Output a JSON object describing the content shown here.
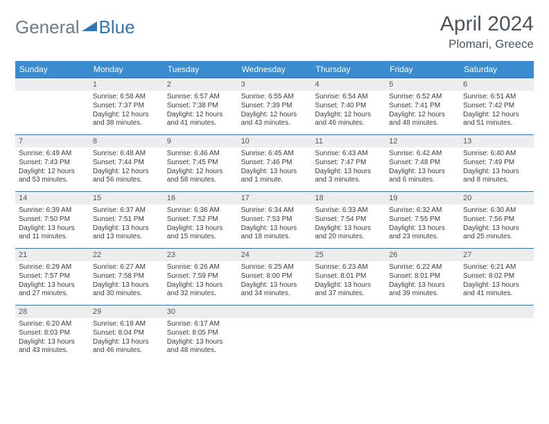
{
  "brand": {
    "part1": "General",
    "part2": "Blue"
  },
  "title": "April 2024",
  "location": "Plomari, Greece",
  "colors": {
    "header_bg": "#3a8bd0",
    "header_fg": "#ffffff",
    "rule": "#3a6fa3",
    "daynum_bg": "#ecedef",
    "brand_gray": "#6b7b8a",
    "brand_blue": "#2f77b8",
    "title_color": "#4a5560"
  },
  "weekdays": [
    "Sunday",
    "Monday",
    "Tuesday",
    "Wednesday",
    "Thursday",
    "Friday",
    "Saturday"
  ],
  "start_offset": 1,
  "days": [
    {
      "n": 1,
      "sr": "6:58 AM",
      "ss": "7:37 PM",
      "dl": "12 hours and 38 minutes."
    },
    {
      "n": 2,
      "sr": "6:57 AM",
      "ss": "7:38 PM",
      "dl": "12 hours and 41 minutes."
    },
    {
      "n": 3,
      "sr": "6:55 AM",
      "ss": "7:39 PM",
      "dl": "12 hours and 43 minutes."
    },
    {
      "n": 4,
      "sr": "6:54 AM",
      "ss": "7:40 PM",
      "dl": "12 hours and 46 minutes."
    },
    {
      "n": 5,
      "sr": "6:52 AM",
      "ss": "7:41 PM",
      "dl": "12 hours and 48 minutes."
    },
    {
      "n": 6,
      "sr": "6:51 AM",
      "ss": "7:42 PM",
      "dl": "12 hours and 51 minutes."
    },
    {
      "n": 7,
      "sr": "6:49 AM",
      "ss": "7:43 PM",
      "dl": "12 hours and 53 minutes."
    },
    {
      "n": 8,
      "sr": "6:48 AM",
      "ss": "7:44 PM",
      "dl": "12 hours and 56 minutes."
    },
    {
      "n": 9,
      "sr": "6:46 AM",
      "ss": "7:45 PM",
      "dl": "12 hours and 58 minutes."
    },
    {
      "n": 10,
      "sr": "6:45 AM",
      "ss": "7:46 PM",
      "dl": "13 hours and 1 minute."
    },
    {
      "n": 11,
      "sr": "6:43 AM",
      "ss": "7:47 PM",
      "dl": "13 hours and 3 minutes."
    },
    {
      "n": 12,
      "sr": "6:42 AM",
      "ss": "7:48 PM",
      "dl": "13 hours and 6 minutes."
    },
    {
      "n": 13,
      "sr": "6:40 AM",
      "ss": "7:49 PM",
      "dl": "13 hours and 8 minutes."
    },
    {
      "n": 14,
      "sr": "6:39 AM",
      "ss": "7:50 PM",
      "dl": "13 hours and 11 minutes."
    },
    {
      "n": 15,
      "sr": "6:37 AM",
      "ss": "7:51 PM",
      "dl": "13 hours and 13 minutes."
    },
    {
      "n": 16,
      "sr": "6:36 AM",
      "ss": "7:52 PM",
      "dl": "13 hours and 15 minutes."
    },
    {
      "n": 17,
      "sr": "6:34 AM",
      "ss": "7:53 PM",
      "dl": "13 hours and 18 minutes."
    },
    {
      "n": 18,
      "sr": "6:33 AM",
      "ss": "7:54 PM",
      "dl": "13 hours and 20 minutes."
    },
    {
      "n": 19,
      "sr": "6:32 AM",
      "ss": "7:55 PM",
      "dl": "13 hours and 23 minutes."
    },
    {
      "n": 20,
      "sr": "6:30 AM",
      "ss": "7:56 PM",
      "dl": "13 hours and 25 minutes."
    },
    {
      "n": 21,
      "sr": "6:29 AM",
      "ss": "7:57 PM",
      "dl": "13 hours and 27 minutes."
    },
    {
      "n": 22,
      "sr": "6:27 AM",
      "ss": "7:58 PM",
      "dl": "13 hours and 30 minutes."
    },
    {
      "n": 23,
      "sr": "6:26 AM",
      "ss": "7:59 PM",
      "dl": "13 hours and 32 minutes."
    },
    {
      "n": 24,
      "sr": "6:25 AM",
      "ss": "8:00 PM",
      "dl": "13 hours and 34 minutes."
    },
    {
      "n": 25,
      "sr": "6:23 AM",
      "ss": "8:01 PM",
      "dl": "13 hours and 37 minutes."
    },
    {
      "n": 26,
      "sr": "6:22 AM",
      "ss": "8:01 PM",
      "dl": "13 hours and 39 minutes."
    },
    {
      "n": 27,
      "sr": "6:21 AM",
      "ss": "8:02 PM",
      "dl": "13 hours and 41 minutes."
    },
    {
      "n": 28,
      "sr": "6:20 AM",
      "ss": "8:03 PM",
      "dl": "13 hours and 43 minutes."
    },
    {
      "n": 29,
      "sr": "6:18 AM",
      "ss": "8:04 PM",
      "dl": "13 hours and 46 minutes."
    },
    {
      "n": 30,
      "sr": "6:17 AM",
      "ss": "8:05 PM",
      "dl": "13 hours and 48 minutes."
    }
  ],
  "labels": {
    "sunrise": "Sunrise:",
    "sunset": "Sunset:",
    "daylight": "Daylight:"
  }
}
